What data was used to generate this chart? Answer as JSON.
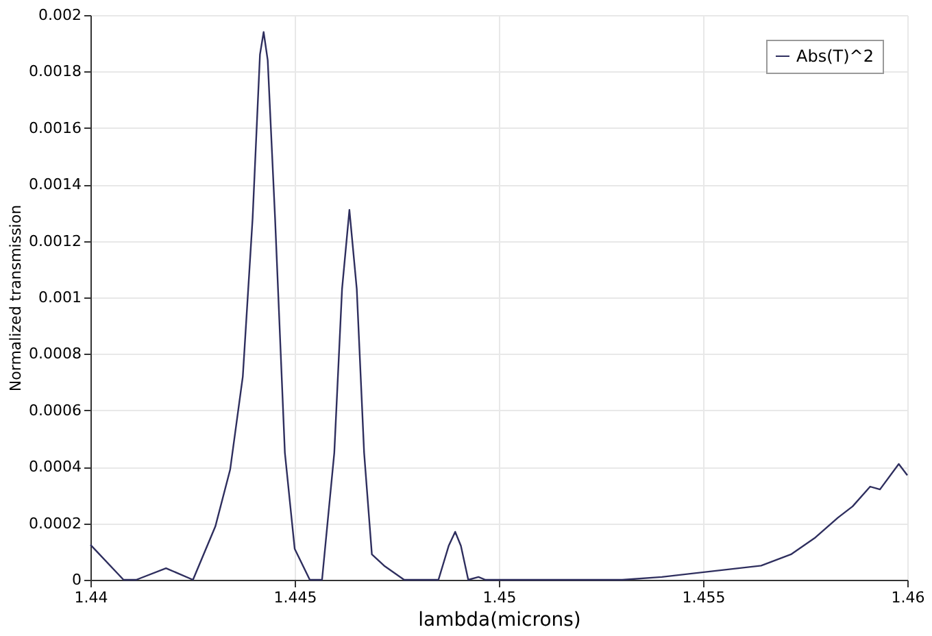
{
  "chart_data": {
    "type": "line",
    "xlabel": "lambda(microns)",
    "ylabel": "Normalized transmission",
    "xlim": [
      1.44,
      1.46
    ],
    "xticks": [
      1.44,
      1.445,
      1.45,
      1.455,
      1.46
    ],
    "ylim": [
      0,
      0.002
    ],
    "yticks": [
      0,
      0.0002,
      0.0004,
      0.0006,
      0.0008,
      0.001,
      0.0012,
      0.0014,
      0.0016,
      0.0018,
      0.002
    ],
    "grid": true,
    "legend": "top right",
    "marker": "none",
    "line_style": "solid",
    "series": [
      {
        "name": "Abs(T)^2",
        "color": "#2e2e5e",
        "x": [
          1.44,
          1.44081,
          1.44112,
          1.44185,
          1.44251,
          1.44306,
          1.44342,
          1.44373,
          1.44397,
          1.44415,
          1.44424,
          1.44434,
          1.44452,
          1.44476,
          1.445,
          1.44537,
          1.44567,
          1.44597,
          1.44616,
          1.44634,
          1.44652,
          1.4467,
          1.44689,
          1.44719,
          1.44768,
          1.44804,
          1.44852,
          1.44877,
          1.44893,
          1.44907,
          1.44925,
          1.4495,
          1.44967,
          1.45155,
          1.45302,
          1.45399,
          1.4552,
          1.45642,
          1.45715,
          1.45775,
          1.4583,
          1.45866,
          1.45909,
          1.45933,
          1.45979,
          1.46
        ],
        "values": [
          0.000124,
          0,
          0,
          4.1e-05,
          0,
          0.00019,
          0.00039,
          0.00072,
          0.00128,
          0.00186,
          0.00194,
          0.00184,
          0.00128,
          0.00045,
          0.00011,
          0,
          0,
          0.00045,
          0.00103,
          0.00131,
          0.00103,
          0.00045,
          9e-05,
          5e-05,
          0,
          0,
          0,
          0.00012,
          0.00017,
          0.00012,
          0,
          1e-05,
          0,
          0,
          0,
          1e-05,
          3e-05,
          5e-05,
          9e-05,
          0.00015,
          0.00022,
          0.00026,
          0.00033,
          0.00032,
          0.00041,
          0.00037
        ]
      }
    ]
  }
}
